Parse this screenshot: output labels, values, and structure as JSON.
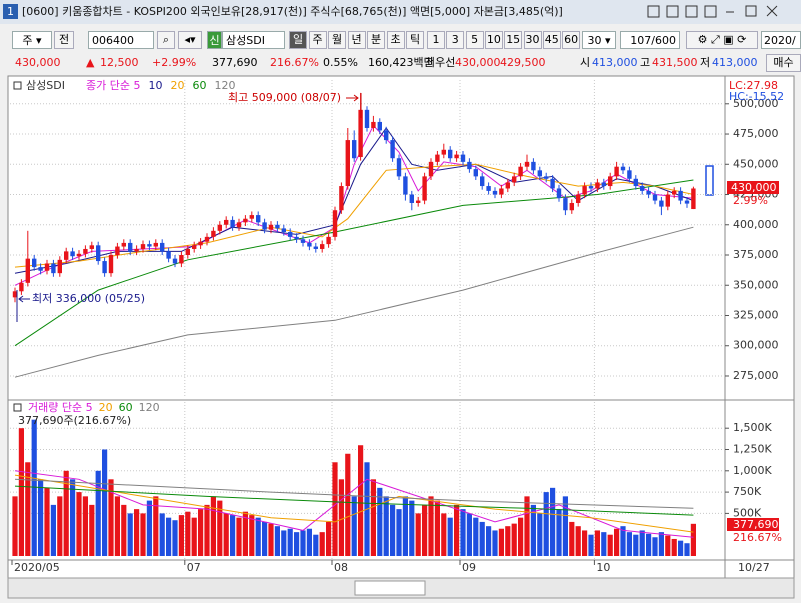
{
  "window": {
    "number": "1",
    "title": "[0600] 키움종합차트 - KOSPI200 외국인보유[28,917(천)] 주식수[68,765(천)] 액면[5,000] 자본금[3,485(억)]"
  },
  "toolbar": {
    "period_unit": "주",
    "prev": "전",
    "code": "006400",
    "badge": "신",
    "name": "삼성SDI",
    "periods": [
      "일",
      "주",
      "월",
      "년",
      "분",
      "초",
      "틱"
    ],
    "intervals": [
      "1",
      "3",
      "5",
      "10",
      "15",
      "30",
      "45",
      "60"
    ],
    "interval_select": "30",
    "count": "107/600",
    "date": "2020/"
  },
  "quote": {
    "price": "430,000",
    "arrow": "▲",
    "change": "12,500",
    "change_rate": "+2.99%",
    "volume": "377,690",
    "volume_ratio": "216.67%",
    "turnover": "0.55%",
    "amount": "160,423백만",
    "best_label": "최우선",
    "ask": "430,000",
    "bid": "429,500",
    "open_label": "시",
    "open": "413,000",
    "high_label": "고",
    "high": "431,500",
    "low_label": "저",
    "low": "413,000",
    "buy": "매수"
  },
  "chart_data": [
    {
      "type": "candlestick",
      "title": "삼성SDI",
      "lc": "LC:27.98",
      "hc": "HC:-15.52",
      "last_label": "430,000",
      "last_change": "2.99%",
      "annotations": [
        "최고 509,000 (08/07)",
        "최저 336,000 (05/25)"
      ],
      "up_color": "#e8141a",
      "down_color": "#1f4fe0",
      "grid": true,
      "ylim": [
        256800,
        511400
      ],
      "yticks": [
        {
          "value": 275000,
          "label": "275,000"
        },
        {
          "value": 300000,
          "label": "300,000"
        },
        {
          "value": 325000,
          "label": "325,000"
        },
        {
          "value": 350000,
          "label": "350,000"
        },
        {
          "value": 375000,
          "label": "375,000"
        },
        {
          "value": 400000,
          "label": "400,000"
        },
        {
          "value": 425000,
          "label": "425,000"
        },
        {
          "value": 450000,
          "label": "450,000"
        },
        {
          "value": 475000,
          "label": "475,000"
        },
        {
          "value": 500000,
          "label": "500,000"
        }
      ],
      "categories": [
        "2020/05",
        null,
        null,
        null,
        null,
        null,
        null,
        null,
        null,
        null,
        null,
        null,
        null,
        null,
        null,
        null,
        null,
        null,
        null,
        null,
        null,
        null,
        null,
        null,
        null,
        null,
        null,
        "07",
        null,
        null,
        null,
        null,
        null,
        null,
        null,
        null,
        null,
        null,
        null,
        null,
        null,
        null,
        null,
        null,
        null,
        null,
        null,
        null,
        null,
        null,
        "08",
        null,
        null,
        null,
        null,
        null,
        null,
        null,
        null,
        null,
        null,
        null,
        null,
        null,
        null,
        null,
        null,
        null,
        null,
        null,
        "09",
        null,
        null,
        null,
        null,
        null,
        null,
        null,
        null,
        null,
        null,
        null,
        null,
        null,
        null,
        null,
        null,
        null,
        null,
        null,
        null,
        "10",
        null,
        null,
        null,
        null,
        null,
        null,
        null,
        null,
        null,
        null,
        null,
        null,
        null,
        null,
        null
      ],
      "open": [
        340000,
        345000,
        352000,
        372000,
        365000,
        362000,
        368000,
        360000,
        371000,
        378000,
        374000,
        376000,
        380000,
        383000,
        370000,
        360000,
        375000,
        382000,
        385000,
        378000,
        380000,
        384000,
        382000,
        385000,
        378000,
        372000,
        368000,
        375000,
        380000,
        383000,
        386000,
        390000,
        395000,
        400000,
        404000,
        398000,
        402000,
        405000,
        408000,
        402000,
        396000,
        400000,
        397000,
        394000,
        390000,
        388000,
        385000,
        382000,
        380000,
        384000,
        390000,
        412000,
        432000,
        470000,
        456000,
        495000,
        480000,
        485000,
        478000,
        470000,
        455000,
        440000,
        425000,
        418000,
        420000,
        440000,
        452000,
        458000,
        462000,
        455000,
        458000,
        452000,
        446000,
        440000,
        432000,
        428000,
        425000,
        430000,
        435000,
        440000,
        448000,
        452000,
        445000,
        440000,
        438000,
        430000,
        422000,
        412000,
        418000,
        425000,
        432000,
        430000,
        435000,
        432000,
        440000,
        448000,
        445000,
        438000,
        432000,
        428000,
        425000,
        420000,
        415000,
        425000,
        428000,
        420000,
        413000
      ],
      "high": [
        348000,
        355000,
        395000,
        375000,
        368000,
        371000,
        371000,
        374000,
        381000,
        381000,
        379000,
        383000,
        386000,
        386000,
        373000,
        378000,
        385000,
        388000,
        388000,
        383000,
        387000,
        387000,
        388000,
        388000,
        381000,
        375000,
        378000,
        383000,
        386000,
        389000,
        393000,
        398000,
        403000,
        407000,
        407000,
        405000,
        408000,
        411000,
        411000,
        405000,
        403000,
        403000,
        400000,
        397000,
        393000,
        391000,
        388000,
        385000,
        387000,
        393000,
        415000,
        435000,
        480000,
        478000,
        509000,
        498000,
        490000,
        488000,
        481000,
        473000,
        458000,
        443000,
        428000,
        423000,
        443000,
        455000,
        461000,
        467000,
        465000,
        461000,
        461000,
        455000,
        449000,
        443000,
        435000,
        431000,
        433000,
        438000,
        443000,
        451000,
        458000,
        455000,
        448000,
        443000,
        441000,
        433000,
        425000,
        421000,
        428000,
        435000,
        435000,
        438000,
        438000,
        443000,
        452000,
        451000,
        448000,
        441000,
        435000,
        431000,
        428000,
        423000,
        428000,
        431000,
        431000,
        423000,
        431500
      ],
      "low": [
        336000,
        342000,
        349000,
        362000,
        359000,
        359000,
        357000,
        357000,
        368000,
        371000,
        371000,
        373000,
        377000,
        367000,
        357000,
        357000,
        372000,
        379000,
        375000,
        375000,
        377000,
        379000,
        379000,
        375000,
        369000,
        365000,
        365000,
        372000,
        377000,
        380000,
        383000,
        387000,
        392000,
        397000,
        395000,
        395000,
        399000,
        402000,
        399000,
        393000,
        393000,
        394000,
        391000,
        387000,
        385000,
        382000,
        379000,
        377000,
        377000,
        381000,
        387000,
        409000,
        429000,
        452000,
        453000,
        477000,
        477000,
        475000,
        467000,
        452000,
        437000,
        420000,
        412000,
        415000,
        417000,
        437000,
        449000,
        455000,
        452000,
        452000,
        449000,
        443000,
        437000,
        429000,
        425000,
        422000,
        422000,
        427000,
        432000,
        437000,
        445000,
        442000,
        437000,
        435000,
        427000,
        419000,
        408000,
        409000,
        415000,
        422000,
        427000,
        427000,
        429000,
        429000,
        437000,
        442000,
        435000,
        429000,
        425000,
        422000,
        417000,
        408000,
        412000,
        422000,
        417000,
        414000,
        413000
      ],
      "close": [
        345000,
        352000,
        372000,
        365000,
        362000,
        368000,
        360000,
        371000,
        378000,
        374000,
        376000,
        380000,
        383000,
        370000,
        360000,
        375000,
        382000,
        385000,
        378000,
        380000,
        384000,
        382000,
        385000,
        378000,
        372000,
        368000,
        375000,
        380000,
        383000,
        386000,
        390000,
        395000,
        400000,
        404000,
        398000,
        402000,
        405000,
        408000,
        402000,
        396000,
        400000,
        397000,
        394000,
        390000,
        388000,
        385000,
        382000,
        380000,
        384000,
        390000,
        412000,
        432000,
        470000,
        455000,
        495000,
        480000,
        485000,
        478000,
        470000,
        455000,
        440000,
        425000,
        418000,
        420000,
        440000,
        452000,
        458000,
        462000,
        455000,
        458000,
        452000,
        446000,
        440000,
        432000,
        428000,
        425000,
        430000,
        435000,
        440000,
        448000,
        452000,
        445000,
        440000,
        438000,
        430000,
        422000,
        412000,
        418000,
        425000,
        432000,
        430000,
        435000,
        432000,
        440000,
        448000,
        445000,
        438000,
        432000,
        428000,
        425000,
        420000,
        415000,
        425000,
        428000,
        420000,
        417500,
        430000
      ],
      "series": [
        {
          "name": "종가 단순 5",
          "color": "#d81ad8",
          "x": [
            0,
            6,
            12,
            20,
            28,
            36,
            46,
            50,
            53,
            56,
            60,
            63,
            67,
            72,
            76,
            80,
            86,
            90,
            94,
            100,
            106
          ],
          "values": [
            350000,
            365000,
            378000,
            380000,
            382000,
            404000,
            385000,
            398000,
            450000,
            482000,
            460000,
            428000,
            452000,
            448000,
            432000,
            445000,
            422000,
            428000,
            442000,
            425000,
            422000
          ]
        },
        {
          "name": "10",
          "color": "#1a1a8c",
          "x": [
            0,
            8,
            16,
            26,
            34,
            44,
            50,
            54,
            58,
            62,
            66,
            72,
            78,
            84,
            88,
            94,
            100,
            106
          ],
          "values": [
            360000,
            368000,
            378000,
            378000,
            398000,
            392000,
            400000,
            450000,
            480000,
            450000,
            445000,
            450000,
            435000,
            440000,
            420000,
            438000,
            432000,
            420000
          ]
        },
        {
          "name": "20",
          "color": "#f0a000",
          "x": [
            0,
            10,
            20,
            30,
            40,
            48,
            52,
            58,
            65,
            72,
            80,
            88,
            95,
            100,
            106
          ],
          "values": [
            365000,
            370000,
            378000,
            385000,
            398000,
            390000,
            405000,
            445000,
            448000,
            450000,
            440000,
            432000,
            435000,
            432000,
            425000
          ]
        },
        {
          "name": "60",
          "color": "#0a8a0a",
          "x": [
            0,
            13,
            27,
            50,
            70,
            91,
            106
          ],
          "values": [
            300000,
            346000,
            371000,
            394000,
            416000,
            425000,
            437000
          ]
        },
        {
          "name": "120",
          "color": "#808080",
          "x": [
            0,
            13,
            27,
            50,
            70,
            91,
            106
          ],
          "values": [
            274000,
            292000,
            309000,
            321000,
            346000,
            377000,
            398000
          ]
        }
      ]
    },
    {
      "type": "bar",
      "info": "377,690주(216.67%)",
      "last_label": "377,690",
      "last_ratio": "216.67%",
      "cursor_date": "10/27",
      "ylim": [
        0,
        1784000
      ],
      "yticks": [
        {
          "value": 500000,
          "label": "500K"
        },
        {
          "value": 750000,
          "label": "750K"
        },
        {
          "value": 1000000,
          "label": "1,000K"
        },
        {
          "value": 1250000,
          "label": "1,250K"
        },
        {
          "value": 1500000,
          "label": "1,500K"
        }
      ],
      "values": [
        700000,
        1500000,
        1100000,
        1600000,
        900000,
        800000,
        600000,
        700000,
        1000000,
        900000,
        750000,
        700000,
        600000,
        1000000,
        1250000,
        900000,
        700000,
        600000,
        500000,
        550000,
        500000,
        650000,
        700000,
        500000,
        450000,
        420000,
        480000,
        520000,
        450000,
        550000,
        600000,
        700000,
        650000,
        500000,
        480000,
        450000,
        520000,
        480000,
        450000,
        400000,
        380000,
        350000,
        300000,
        320000,
        280000,
        300000,
        320000,
        250000,
        280000,
        400000,
        1100000,
        900000,
        1200000,
        700000,
        1300000,
        1100000,
        900000,
        800000,
        700000,
        600000,
        550000,
        700000,
        650000,
        500000,
        600000,
        700000,
        650000,
        500000,
        450000,
        600000,
        550000,
        500000,
        450000,
        400000,
        350000,
        300000,
        320000,
        350000,
        380000,
        450000,
        700000,
        600000,
        500000,
        750000,
        800000,
        550000,
        700000,
        400000,
        350000,
        300000,
        250000,
        300000,
        280000,
        250000,
        320000,
        350000,
        280000,
        250000,
        300000,
        260000,
        220000,
        280000,
        240000,
        200000,
        180000,
        150000,
        377690
      ],
      "series": [
        {
          "name": "거래량 단순 5",
          "color": "#d81ad8",
          "x": [
            0,
            10,
            20,
            30,
            45,
            55,
            65,
            75,
            85,
            95,
            106
          ],
          "values": [
            1000000,
            900000,
            600000,
            550000,
            300000,
            900000,
            650000,
            400000,
            600000,
            300000,
            220000
          ]
        },
        {
          "name": "20",
          "color": "#f0a000",
          "x": [
            0,
            20,
            40,
            50,
            60,
            75,
            90,
            106
          ],
          "values": [
            950000,
            700000,
            450000,
            400000,
            700000,
            550000,
            450000,
            280000
          ]
        },
        {
          "name": "60",
          "color": "#0a8a0a",
          "x": [
            0,
            30,
            55,
            80,
            106
          ],
          "values": [
            820000,
            700000,
            620000,
            560000,
            480000
          ]
        },
        {
          "name": "120",
          "color": "#808080",
          "x": [
            0,
            40,
            70,
            106
          ],
          "values": [
            900000,
            750000,
            650000,
            560000
          ]
        }
      ]
    }
  ]
}
